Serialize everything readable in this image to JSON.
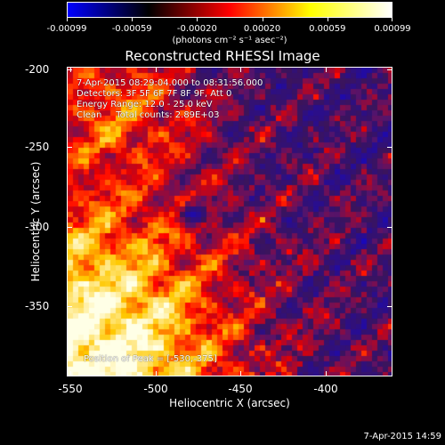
{
  "colorbar": {
    "tick_labels": [
      "-0.00099",
      "-0.00059",
      "-0.00020",
      "0.00020",
      "0.00059",
      "0.00099"
    ],
    "units": "(photons cm⁻² s⁻¹ asec⁻²)",
    "colors": [
      "#0000ff",
      "#000000",
      "#ff0000",
      "#ffff00",
      "#ffffff"
    ]
  },
  "title": "Reconstructed RHESSI Image",
  "info": {
    "line1": "7-Apr-2015 08:29:04.000 to 08:31:56.000",
    "line2": "Detectors: 3F 5F 6F 7F 8F 9F, Att 0",
    "line3": "Energy Range: 12.0 - 25.0 keV",
    "line4": "Clean     Total counts: 2.89E+03"
  },
  "peak_text": "Position of Peak = [-530,-375]",
  "axes": {
    "x_title": "Heliocentric X (arcsec)",
    "y_title": "Heliocentric Y (arcsec)",
    "x_ticks": [
      "-550",
      "-500",
      "-450",
      "-400"
    ],
    "y_ticks": [
      "-200",
      "-250",
      "-300",
      "-350"
    ]
  },
  "timestamp": "7-Apr-2015 14:59"
}
